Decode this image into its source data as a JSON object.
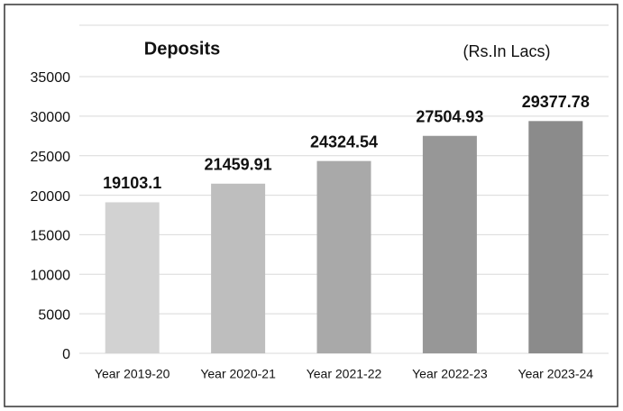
{
  "chart_data": {
    "type": "bar",
    "title": "Deposits",
    "subtitle": "(Rs.In Lacs)",
    "categories": [
      "Year 2019-20",
      "Year 2020-21",
      "Year 2021-22",
      "Year 2022-23",
      "Year 2023-24"
    ],
    "values": [
      19103.1,
      21459.91,
      24324.54,
      27504.93,
      29377.78
    ],
    "colors": [
      "#d2d2d2",
      "#bebebe",
      "#a9a9a9",
      "#979797",
      "#8b8b8b"
    ],
    "ylim": [
      0,
      35000
    ],
    "yticks": [
      0,
      5000,
      10000,
      15000,
      20000,
      25000,
      30000,
      35000
    ],
    "grid": true
  }
}
